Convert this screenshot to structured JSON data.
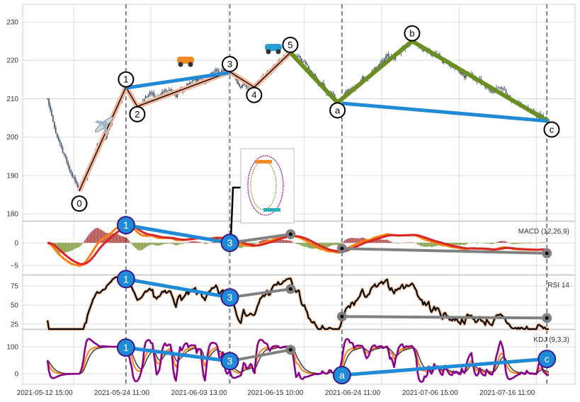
{
  "chart_data": {
    "type": "candlestick-with-indicators",
    "x_unit": "bar index",
    "x_ticks": [
      {
        "x": 18.5,
        "label": "2021-05-12 15:00"
      },
      {
        "x": 46.4,
        "label": "2021-05-24 11:00"
      },
      {
        "x": 74.4,
        "label": "2021-06-03 13:00"
      },
      {
        "x": 102.0,
        "label": "2021-06-15 10:00"
      },
      {
        "x": 130.0,
        "label": "2021-06-24 11:00"
      },
      {
        "x": 158.0,
        "label": "2021-07-06 15:00"
      },
      {
        "x": 186.0,
        "label": "2021-07-16 11:00"
      }
    ],
    "x_range": [
      0,
      200
    ],
    "dashed_verticals": [
      37.4,
      75.0,
      115.6,
      189.8
    ],
    "panels": [
      {
        "name": "price",
        "label": "",
        "ylim": [
          178.2,
          234.6
        ],
        "yticks": [
          180,
          190,
          200,
          210,
          220,
          230
        ]
      },
      {
        "name": "macd",
        "label": "MACD (12,26,9)",
        "ylim": [
          -7.0,
          4.7
        ],
        "yticks": [
          -5,
          0
        ]
      },
      {
        "name": "rsi",
        "label": "RSI 14",
        "ylim": [
          18.5,
          88.9
        ],
        "yticks": [
          25,
          50,
          75
        ]
      },
      {
        "name": "kdj",
        "label": "KDJ (9,3,3)",
        "ylim": [
          -39,
          163
        ],
        "yticks": [
          0,
          100
        ]
      }
    ],
    "price_anchors": [
      [
        9,
        210
      ],
      [
        12,
        201
      ],
      [
        20.5,
        186
      ],
      [
        37.4,
        213
      ],
      [
        41.5,
        208
      ],
      [
        75,
        217
      ],
      [
        83.8,
        213
      ],
      [
        96.9,
        222
      ],
      [
        114,
        209
      ],
      [
        141,
        225
      ],
      [
        190.5,
        204
      ]
    ],
    "noise_seed": 7,
    "waves": [
      {
        "label": "0",
        "x": 20.5,
        "y": 186
      },
      {
        "label": "1",
        "x": 37.4,
        "y": 213
      },
      {
        "label": "2",
        "x": 41.5,
        "y": 208
      },
      {
        "label": "3",
        "x": 75.0,
        "y": 217
      },
      {
        "label": "4",
        "x": 83.8,
        "y": 213
      },
      {
        "label": "5",
        "x": 96.9,
        "y": 222
      },
      {
        "label": "a",
        "x": 114.0,
        "y": 209
      },
      {
        "label": "b",
        "x": 141.0,
        "y": 225
      },
      {
        "label": "c",
        "x": 190.5,
        "y": 204
      }
    ],
    "impulse_path": [
      "0",
      "1",
      "2",
      "3",
      "4",
      "5"
    ],
    "correction_path": [
      "5",
      "a",
      "b",
      "c"
    ],
    "price_trendlines": [
      {
        "from": [
          37.4,
          212.8
        ],
        "to": [
          75.0,
          216.8
        ],
        "color": "#1f8ad6"
      },
      {
        "from": [
          115.6,
          208.8
        ],
        "to": [
          190.0,
          204.2
        ],
        "color": "#1f8ad6"
      }
    ],
    "indicator_annotations": {
      "macd": {
        "blue": [
          {
            "label": "1",
            "x": 37.4,
            "y": 3.9
          },
          {
            "label": "3",
            "x": 75.0,
            "y": 0.0
          }
        ],
        "gray": [
          [
            [
              75.0,
              0.0
            ],
            [
              97.0,
              1.9
            ]
          ],
          [
            [
              115.6,
              -1.25
            ],
            [
              189.8,
              -2.3
            ]
          ]
        ]
      },
      "rsi": {
        "blue": [
          {
            "label": "1",
            "x": 37.4,
            "y": 84
          },
          {
            "label": "3",
            "x": 75.0,
            "y": 60
          }
        ],
        "gray": [
          [
            [
              75.0,
              60
            ],
            [
              97.0,
              71
            ]
          ],
          [
            [
              115.6,
              35
            ],
            [
              189.8,
              33
            ]
          ]
        ]
      },
      "kdj": {
        "blue": [
          {
            "label": "1",
            "x": 37.4,
            "y": 97
          },
          {
            "label": "3",
            "x": 75.0,
            "y": 47
          },
          {
            "label": "a",
            "x": 115.6,
            "y": -5
          },
          {
            "label": "c",
            "x": 189.8,
            "y": 55
          }
        ],
        "gray": [
          [
            [
              75.0,
              47
            ],
            [
              97.0,
              89
            ]
          ]
        ]
      }
    },
    "colors": {
      "candle": "#3b4a5e",
      "impulse": "#f4b496",
      "correction": "#6b8e23",
      "trend": "#1f8ad6",
      "macd": "#ff7f0e",
      "signal": "#d62728",
      "hist_pos": "#a52a2a",
      "hist_neg": "#6b8e23",
      "rsi": "#000000",
      "k": "#ff7f0e",
      "d": "#444444",
      "j": "#8b008b",
      "gray": "#808080"
    }
  }
}
